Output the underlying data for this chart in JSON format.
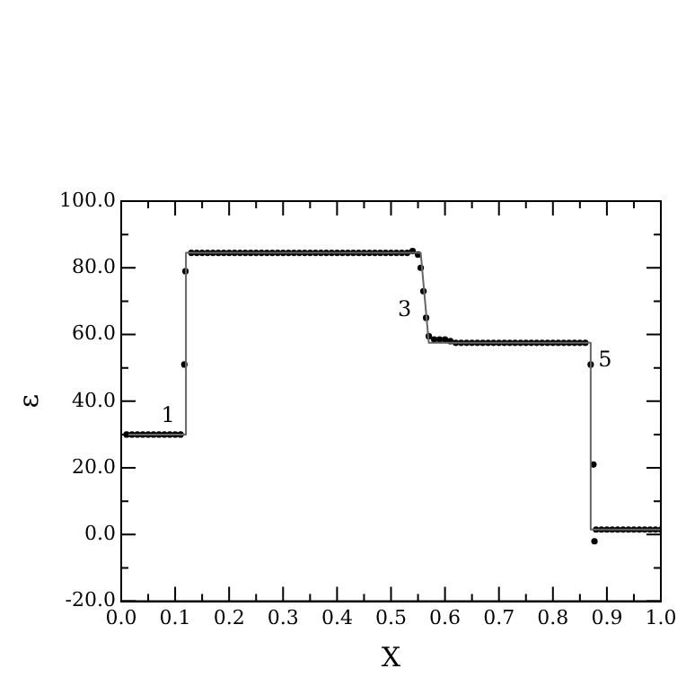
{
  "chart_data": {
    "type": "scatter",
    "xlabel": "X",
    "ylabel": "ε",
    "xlim": [
      0.0,
      1.0
    ],
    "ylim": [
      -20.0,
      100.0
    ],
    "xticks": [
      {
        "value": 0,
        "label": "0.0"
      },
      {
        "value": 0.05,
        "label": null
      },
      {
        "value": 0.1,
        "label": "0.1"
      },
      {
        "value": 0.15,
        "label": null
      },
      {
        "value": 0.2,
        "label": "0.2"
      },
      {
        "value": 0.25,
        "label": null
      },
      {
        "value": 0.3,
        "label": "0.3"
      },
      {
        "value": 0.35,
        "label": null
      },
      {
        "value": 0.4,
        "label": "0.4"
      },
      {
        "value": 0.45,
        "label": null
      },
      {
        "value": 0.5,
        "label": "0.5"
      },
      {
        "value": 0.55,
        "label": null
      },
      {
        "value": 0.6,
        "label": "0.6"
      },
      {
        "value": 0.65,
        "label": null
      },
      {
        "value": 0.7,
        "label": "0.7"
      },
      {
        "value": 0.75,
        "label": null
      },
      {
        "value": 0.8,
        "label": "0.8"
      },
      {
        "value": 0.85,
        "label": null
      },
      {
        "value": 0.9,
        "label": "0.9"
      },
      {
        "value": 0.95,
        "label": null
      },
      {
        "value": 1,
        "label": "1.0"
      }
    ],
    "yticks": [
      {
        "value": -20,
        "label": "-20.0"
      },
      {
        "value": -10,
        "label": null
      },
      {
        "value": 0,
        "label": "0.0"
      },
      {
        "value": 10,
        "label": null
      },
      {
        "value": 20,
        "label": "20.0"
      },
      {
        "value": 30,
        "label": null
      },
      {
        "value": 40,
        "label": "40.0"
      },
      {
        "value": 50,
        "label": null
      },
      {
        "value": 60,
        "label": "60.0"
      },
      {
        "value": 70,
        "label": null
      },
      {
        "value": 80,
        "label": "80.0"
      },
      {
        "value": 90,
        "label": null
      },
      {
        "value": 100,
        "label": "100.0"
      }
    ],
    "series": [
      {
        "type": "line",
        "color": "#666666",
        "marker": "none",
        "line_style": "solid",
        "x": [
          0,
          0.12,
          0.12,
          0.555,
          0.57,
          0.87,
          0.87,
          1.0
        ],
        "values": [
          30,
          30,
          84.5,
          84.5,
          57.5,
          57.5,
          1.5,
          1.5
        ]
      },
      {
        "type": "scatter",
        "color": "#000000",
        "marker": "circle",
        "x": [
          0.01,
          0.02,
          0.03,
          0.04,
          0.05,
          0.06,
          0.07,
          0.08,
          0.09,
          0.1,
          0.11,
          0.117,
          0.119,
          0.13,
          0.14,
          0.15,
          0.16,
          0.17,
          0.18,
          0.19,
          0.2,
          0.21,
          0.22,
          0.23,
          0.24,
          0.25,
          0.26,
          0.27,
          0.28,
          0.29,
          0.3,
          0.31,
          0.32,
          0.33,
          0.34,
          0.35,
          0.36,
          0.37,
          0.38,
          0.39,
          0.4,
          0.41,
          0.42,
          0.43,
          0.44,
          0.45,
          0.46,
          0.47,
          0.48,
          0.49,
          0.5,
          0.51,
          0.52,
          0.53,
          0.54,
          0.55,
          0.555,
          0.56,
          0.565,
          0.57,
          0.58,
          0.59,
          0.6,
          0.61,
          0.62,
          0.63,
          0.64,
          0.65,
          0.66,
          0.67,
          0.68,
          0.69,
          0.7,
          0.71,
          0.72,
          0.73,
          0.74,
          0.75,
          0.76,
          0.77,
          0.78,
          0.79,
          0.8,
          0.81,
          0.82,
          0.83,
          0.84,
          0.85,
          0.86,
          0.87,
          0.875,
          0.877,
          0.88,
          0.89,
          0.9,
          0.91,
          0.92,
          0.93,
          0.94,
          0.95,
          0.96,
          0.97,
          0.98,
          0.99,
          1.0
        ],
        "values": [
          30,
          30,
          30,
          30,
          30,
          30,
          30,
          30,
          30,
          30,
          30,
          51,
          79,
          84.5,
          84.5,
          84.5,
          84.5,
          84.5,
          84.5,
          84.5,
          84.5,
          84.5,
          84.5,
          84.5,
          84.5,
          84.5,
          84.5,
          84.5,
          84.5,
          84.5,
          84.5,
          84.5,
          84.5,
          84.5,
          84.5,
          84.5,
          84.5,
          84.5,
          84.5,
          84.5,
          84.5,
          84.5,
          84.5,
          84.5,
          84.5,
          84.5,
          84.5,
          84.5,
          84.5,
          84.5,
          84.5,
          84.5,
          84.5,
          84.5,
          85,
          84,
          80,
          73,
          65,
          59.5,
          58.5,
          58.5,
          58.5,
          58,
          57.5,
          57.5,
          57.5,
          57.5,
          57.5,
          57.5,
          57.5,
          57.5,
          57.5,
          57.5,
          57.5,
          57.5,
          57.5,
          57.5,
          57.5,
          57.5,
          57.5,
          57.5,
          57.5,
          57.5,
          57.5,
          57.5,
          57.5,
          57.5,
          57.5,
          51,
          21,
          -2,
          1.5,
          1.5,
          1.5,
          1.5,
          1.5,
          1.5,
          1.5,
          1.5,
          1.5,
          1.5,
          1.5,
          1.5,
          1.5
        ]
      }
    ],
    "annotations": [
      {
        "text": "1",
        "x": 0.11,
        "y": 30
      },
      {
        "text": "3",
        "x": 0.565,
        "y": 65
      },
      {
        "text": "5",
        "x": 0.87,
        "y": 51
      }
    ]
  }
}
